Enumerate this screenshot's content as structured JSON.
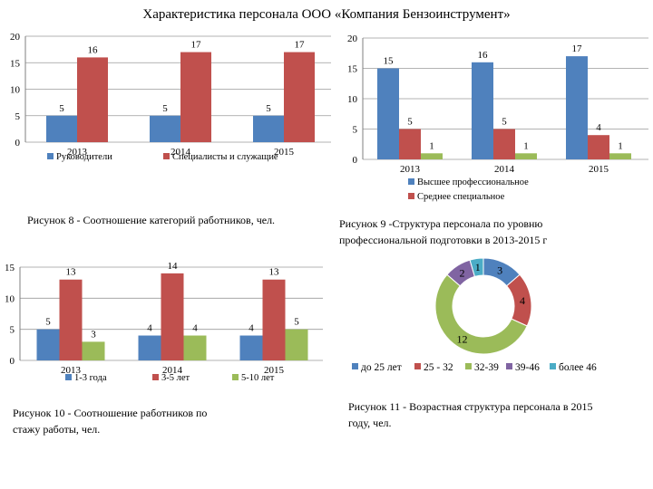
{
  "page": {
    "title": "Характеристика персонала  ООО «Компания Бензоинструмент»"
  },
  "captions": {
    "fig8": "Рисунок 8 - Соотношение категорий работников, чел.",
    "fig9_line1": "Рисунок 9 -Структура персонала по уровню",
    "fig9_line2": "профессиональной подготовки в 2013-2015 г",
    "fig10_line1": "Рисунок 10 - Соотношение работников по",
    "fig10_line2": "стажу работы, чел.",
    "fig11_line1": "Рисунок 11 - Возрастная структура персонала в 2015",
    "fig11_line2": "году, чел."
  },
  "colors": {
    "blue": "#4F81BD",
    "red": "#C0504D",
    "green": "#9BBB59",
    "purple": "#8064A2",
    "cyan": "#4BACC6"
  },
  "chart_data": [
    {
      "id": "fig8",
      "type": "bar",
      "categories": [
        "2013",
        "2014",
        "2015"
      ],
      "series": [
        {
          "name": "Руководители",
          "values": [
            5,
            5,
            5
          ]
        },
        {
          "name": "Специалисты и служащие",
          "values": [
            16,
            17,
            17
          ]
        }
      ],
      "ylim": [
        0,
        20
      ],
      "yticks": [
        0,
        5,
        10,
        15,
        20
      ],
      "legend": "bottom"
    },
    {
      "id": "fig9",
      "type": "bar",
      "categories": [
        "2013",
        "2014",
        "2015"
      ],
      "series": [
        {
          "name": "Высшее профессиональное",
          "values": [
            15,
            16,
            17
          ]
        },
        {
          "name": "Среднее специальное",
          "values": [
            5,
            5,
            4
          ]
        },
        {
          "name": "",
          "values": [
            1,
            1,
            1
          ]
        }
      ],
      "ylim": [
        0,
        20
      ],
      "yticks": [
        0,
        5,
        10,
        15,
        20
      ],
      "legend": "bottom"
    },
    {
      "id": "fig10",
      "type": "bar",
      "categories": [
        "2013",
        "2014",
        "2015"
      ],
      "series": [
        {
          "name": "1-3 года",
          "values": [
            5,
            4,
            4
          ]
        },
        {
          "name": "3-5 лет",
          "values": [
            13,
            14,
            13
          ]
        },
        {
          "name": "5-10 лет",
          "values": [
            3,
            4,
            5
          ]
        }
      ],
      "ylim": [
        0,
        15
      ],
      "yticks": [
        0,
        5,
        10,
        15
      ],
      "legend": "bottom"
    },
    {
      "id": "fig11",
      "type": "pie",
      "donut": true,
      "categories": [
        "до 25 лет",
        "25 - 32",
        "32-39",
        "39-46",
        "более 46"
      ],
      "values": [
        3,
        4,
        12,
        2,
        1
      ],
      "legend": "bottom"
    }
  ]
}
